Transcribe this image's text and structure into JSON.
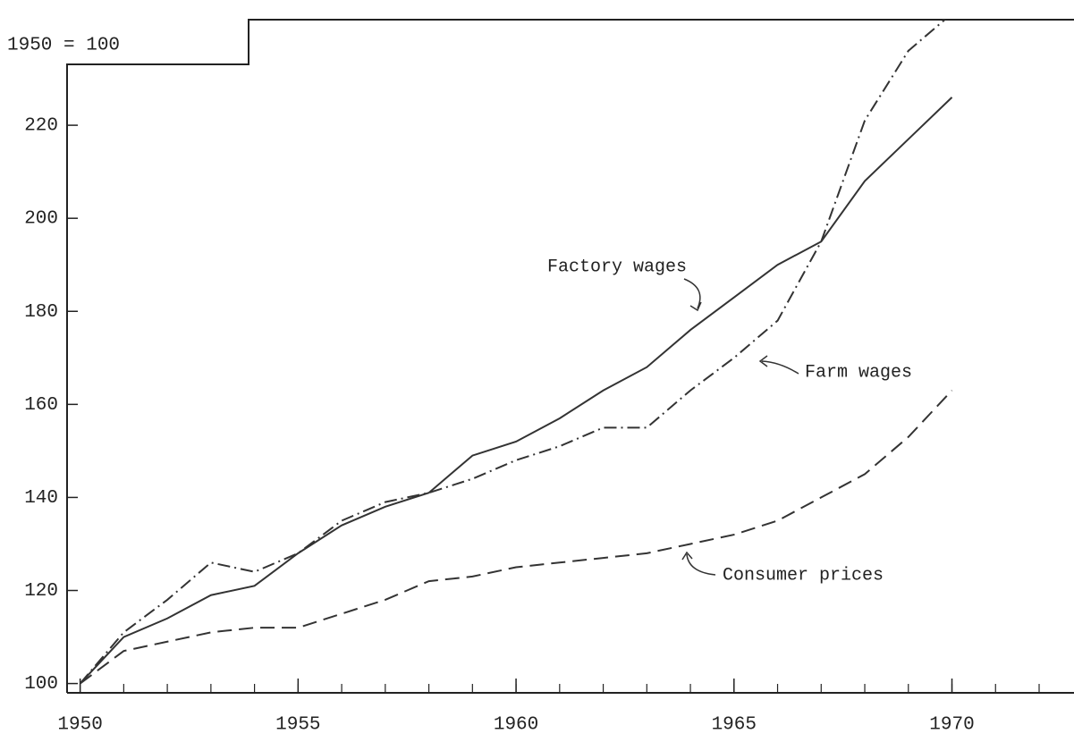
{
  "chart_data": {
    "type": "line",
    "ylabel": "1950 = 100",
    "x": [
      1950,
      1951,
      1952,
      1953,
      1954,
      1955,
      1956,
      1957,
      1958,
      1959,
      1960,
      1961,
      1962,
      1963,
      1964,
      1965,
      1966,
      1967,
      1968,
      1969,
      1970
    ],
    "series": [
      {
        "name": "Factory wages",
        "color": "#333333",
        "dash": "none",
        "values": [
          100,
          110,
          114,
          119,
          121,
          128,
          134,
          138,
          141,
          149,
          152,
          157,
          163,
          168,
          176,
          183,
          190,
          195,
          208,
          217,
          226
        ]
      },
      {
        "name": "Farm wages",
        "color": "#333333",
        "dash": "14 5 2 5",
        "values": [
          100,
          111,
          118,
          126,
          124,
          128,
          135,
          139,
          141,
          144,
          148,
          151,
          155,
          155,
          163,
          170,
          178,
          195,
          221,
          236,
          244
        ]
      },
      {
        "name": "Consumer prices",
        "color": "#333333",
        "dash": "16 8",
        "values": [
          100,
          107,
          109,
          111,
          112,
          112,
          115,
          118,
          122,
          123,
          125,
          126,
          127,
          128,
          130,
          132,
          135,
          140,
          145,
          153,
          163
        ]
      }
    ],
    "xlim": [
      1949.7,
      1972.8
    ],
    "ylim": [
      98,
      245
    ],
    "xticks": [
      1950,
      1955,
      1960,
      1965,
      1970
    ],
    "xminorticks": [
      1950,
      1951,
      1952,
      1953,
      1954,
      1955,
      1956,
      1957,
      1958,
      1959,
      1960,
      1961,
      1962,
      1963,
      1964,
      1965,
      1966,
      1967,
      1968,
      1969,
      1970,
      1971,
      1972
    ],
    "yticks": [
      100,
      120,
      140,
      160,
      180,
      200,
      220
    ],
    "grid": false
  }
}
